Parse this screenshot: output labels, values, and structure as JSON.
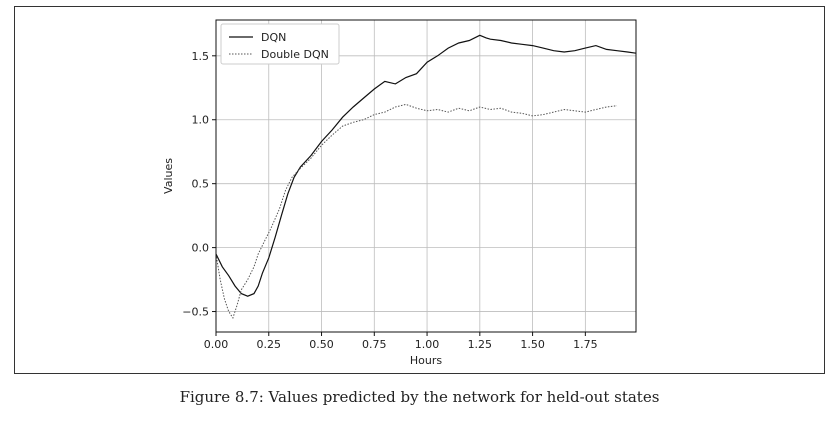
{
  "figure": {
    "caption": "Figure 8.7: Values predicted by the network for held-out states"
  },
  "chart_data": {
    "type": "line",
    "xlabel": "Hours",
    "ylabel": "Values",
    "xlim": [
      0,
      1.99
    ],
    "ylim": [
      -0.66,
      1.78
    ],
    "x_ticks": [
      0.0,
      0.25,
      0.5,
      0.75,
      1.0,
      1.25,
      1.5,
      1.75
    ],
    "x_tick_labels": [
      "0.00",
      "0.25",
      "0.50",
      "0.75",
      "1.00",
      "1.25",
      "1.50",
      "1.75"
    ],
    "y_ticks": [
      -0.5,
      0.0,
      0.5,
      1.0,
      1.5
    ],
    "y_tick_labels": [
      "-0.5",
      "0.0",
      "0.5",
      "1.0",
      "1.5"
    ],
    "grid": true,
    "legend_position": "top-left",
    "series": [
      {
        "name": "DQN",
        "style": "solid",
        "color": "#111111",
        "x": [
          0.0,
          0.03,
          0.06,
          0.09,
          0.12,
          0.15,
          0.18,
          0.2,
          0.22,
          0.25,
          0.28,
          0.31,
          0.34,
          0.37,
          0.4,
          0.45,
          0.5,
          0.55,
          0.6,
          0.65,
          0.7,
          0.75,
          0.8,
          0.85,
          0.9,
          0.95,
          1.0,
          1.05,
          1.1,
          1.15,
          1.2,
          1.25,
          1.28,
          1.3,
          1.35,
          1.4,
          1.45,
          1.5,
          1.55,
          1.6,
          1.65,
          1.7,
          1.75,
          1.8,
          1.85,
          1.9,
          1.95,
          1.99
        ],
        "y": [
          -0.05,
          -0.15,
          -0.22,
          -0.3,
          -0.36,
          -0.38,
          -0.36,
          -0.3,
          -0.2,
          -0.08,
          0.08,
          0.25,
          0.42,
          0.55,
          0.63,
          0.72,
          0.83,
          0.92,
          1.02,
          1.1,
          1.17,
          1.24,
          1.3,
          1.28,
          1.33,
          1.36,
          1.45,
          1.5,
          1.56,
          1.6,
          1.62,
          1.66,
          1.64,
          1.63,
          1.62,
          1.6,
          1.59,
          1.58,
          1.56,
          1.54,
          1.53,
          1.54,
          1.56,
          1.58,
          1.55,
          1.54,
          1.53,
          1.52
        ]
      },
      {
        "name": "Double DQN",
        "style": "dotted",
        "color": "#555555",
        "x": [
          0.0,
          0.02,
          0.04,
          0.06,
          0.08,
          0.1,
          0.12,
          0.15,
          0.18,
          0.2,
          0.23,
          0.26,
          0.3,
          0.33,
          0.36,
          0.4,
          0.45,
          0.5,
          0.55,
          0.6,
          0.65,
          0.7,
          0.75,
          0.8,
          0.85,
          0.9,
          0.95,
          1.0,
          1.05,
          1.1,
          1.15,
          1.2,
          1.25,
          1.3,
          1.35,
          1.4,
          1.45,
          1.5,
          1.55,
          1.6,
          1.65,
          1.7,
          1.75,
          1.8,
          1.85,
          1.9
        ],
        "y": [
          -0.05,
          -0.25,
          -0.4,
          -0.5,
          -0.55,
          -0.45,
          -0.33,
          -0.25,
          -0.15,
          -0.05,
          0.05,
          0.15,
          0.3,
          0.45,
          0.55,
          0.62,
          0.7,
          0.8,
          0.88,
          0.95,
          0.98,
          1.0,
          1.04,
          1.06,
          1.1,
          1.12,
          1.09,
          1.07,
          1.08,
          1.06,
          1.09,
          1.07,
          1.1,
          1.08,
          1.09,
          1.06,
          1.05,
          1.03,
          1.04,
          1.06,
          1.08,
          1.07,
          1.06,
          1.08,
          1.1,
          1.11
        ]
      }
    ]
  }
}
